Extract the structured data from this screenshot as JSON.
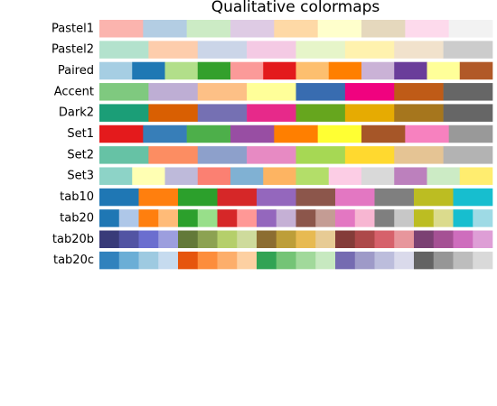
{
  "title": "Qualitative colormaps",
  "colormaps": [
    {
      "name": "Pastel1",
      "colors": [
        "#fbb4ae",
        "#b3cde3",
        "#ccebc5",
        "#decbe4",
        "#fed9a6",
        "#ffffcc",
        "#e5d8bd",
        "#fddaec",
        "#f2f2f2"
      ]
    },
    {
      "name": "Pastel2",
      "colors": [
        "#b3e2cd",
        "#fdcdac",
        "#cbd5e8",
        "#f4cae4",
        "#e6f5c9",
        "#fff2ae",
        "#f1e2cc",
        "#cccccc"
      ]
    },
    {
      "name": "Paired",
      "colors": [
        "#a6cee3",
        "#1f78b4",
        "#b2df8a",
        "#33a02c",
        "#fb9a99",
        "#e31a1c",
        "#fdbf6f",
        "#ff7f00",
        "#cab2d6",
        "#6a3d9a",
        "#ffff99",
        "#b15928"
      ]
    },
    {
      "name": "Accent",
      "colors": [
        "#7fc97f",
        "#beaed4",
        "#fdc086",
        "#ffff99",
        "#386cb0",
        "#f0027f",
        "#bf5b17",
        "#666666"
      ]
    },
    {
      "name": "Dark2",
      "colors": [
        "#1b9e77",
        "#d95f02",
        "#7570b3",
        "#e7298a",
        "#66a61e",
        "#e6ab02",
        "#a6761d",
        "#666666"
      ]
    },
    {
      "name": "Set1",
      "colors": [
        "#e41a1c",
        "#377eb8",
        "#4daf4a",
        "#984ea3",
        "#ff7f00",
        "#ffff33",
        "#a65628",
        "#f781bf",
        "#999999"
      ]
    },
    {
      "name": "Set2",
      "colors": [
        "#66c2a5",
        "#fc8d62",
        "#8da0cb",
        "#e78ac3",
        "#a6d854",
        "#ffd92f",
        "#e5c494",
        "#b3b3b3"
      ]
    },
    {
      "name": "Set3",
      "colors": [
        "#8dd3c7",
        "#ffffb3",
        "#bebada",
        "#fb8072",
        "#80b1d3",
        "#fdb462",
        "#b3de69",
        "#fccde5",
        "#d9d9d9",
        "#bc80bd",
        "#ccebc5",
        "#ffed6f"
      ]
    },
    {
      "name": "tab10",
      "colors": [
        "#1f77b4",
        "#ff7f0e",
        "#2ca02c",
        "#d62728",
        "#9467bd",
        "#8c564b",
        "#e377c2",
        "#7f7f7f",
        "#bcbd22",
        "#17becf"
      ]
    },
    {
      "name": "tab20",
      "colors": [
        "#1f77b4",
        "#aec7e8",
        "#ff7f0e",
        "#ffbb78",
        "#2ca02c",
        "#98df8a",
        "#d62728",
        "#ff9896",
        "#9467bd",
        "#c5b0d5",
        "#8c564b",
        "#c49c94",
        "#e377c2",
        "#f7b6d2",
        "#7f7f7f",
        "#c7c7c7",
        "#bcbd22",
        "#dbdb8d",
        "#17becf",
        "#9edae5"
      ]
    },
    {
      "name": "tab20b",
      "colors": [
        "#393b79",
        "#5254a3",
        "#6b6ecf",
        "#9c9ede",
        "#637939",
        "#8ca252",
        "#b5cf6b",
        "#cedb9c",
        "#8c6d31",
        "#bd9e39",
        "#e7ba52",
        "#e7cb94",
        "#843c39",
        "#ad494a",
        "#d6616b",
        "#e7969c",
        "#7b4173",
        "#a55194",
        "#ce6dbd",
        "#de9ed6"
      ]
    },
    {
      "name": "tab20c",
      "colors": [
        "#3182bd",
        "#6baed6",
        "#9ecae1",
        "#c6dbef",
        "#e6550d",
        "#fd8d3c",
        "#fdae6b",
        "#fdd0a2",
        "#31a354",
        "#74c476",
        "#a1d99b",
        "#c7e9c0",
        "#756bb1",
        "#9e9ac8",
        "#bcbddc",
        "#dadaeb",
        "#636363",
        "#969696",
        "#bdbdbd",
        "#d9d9d9"
      ]
    }
  ]
}
